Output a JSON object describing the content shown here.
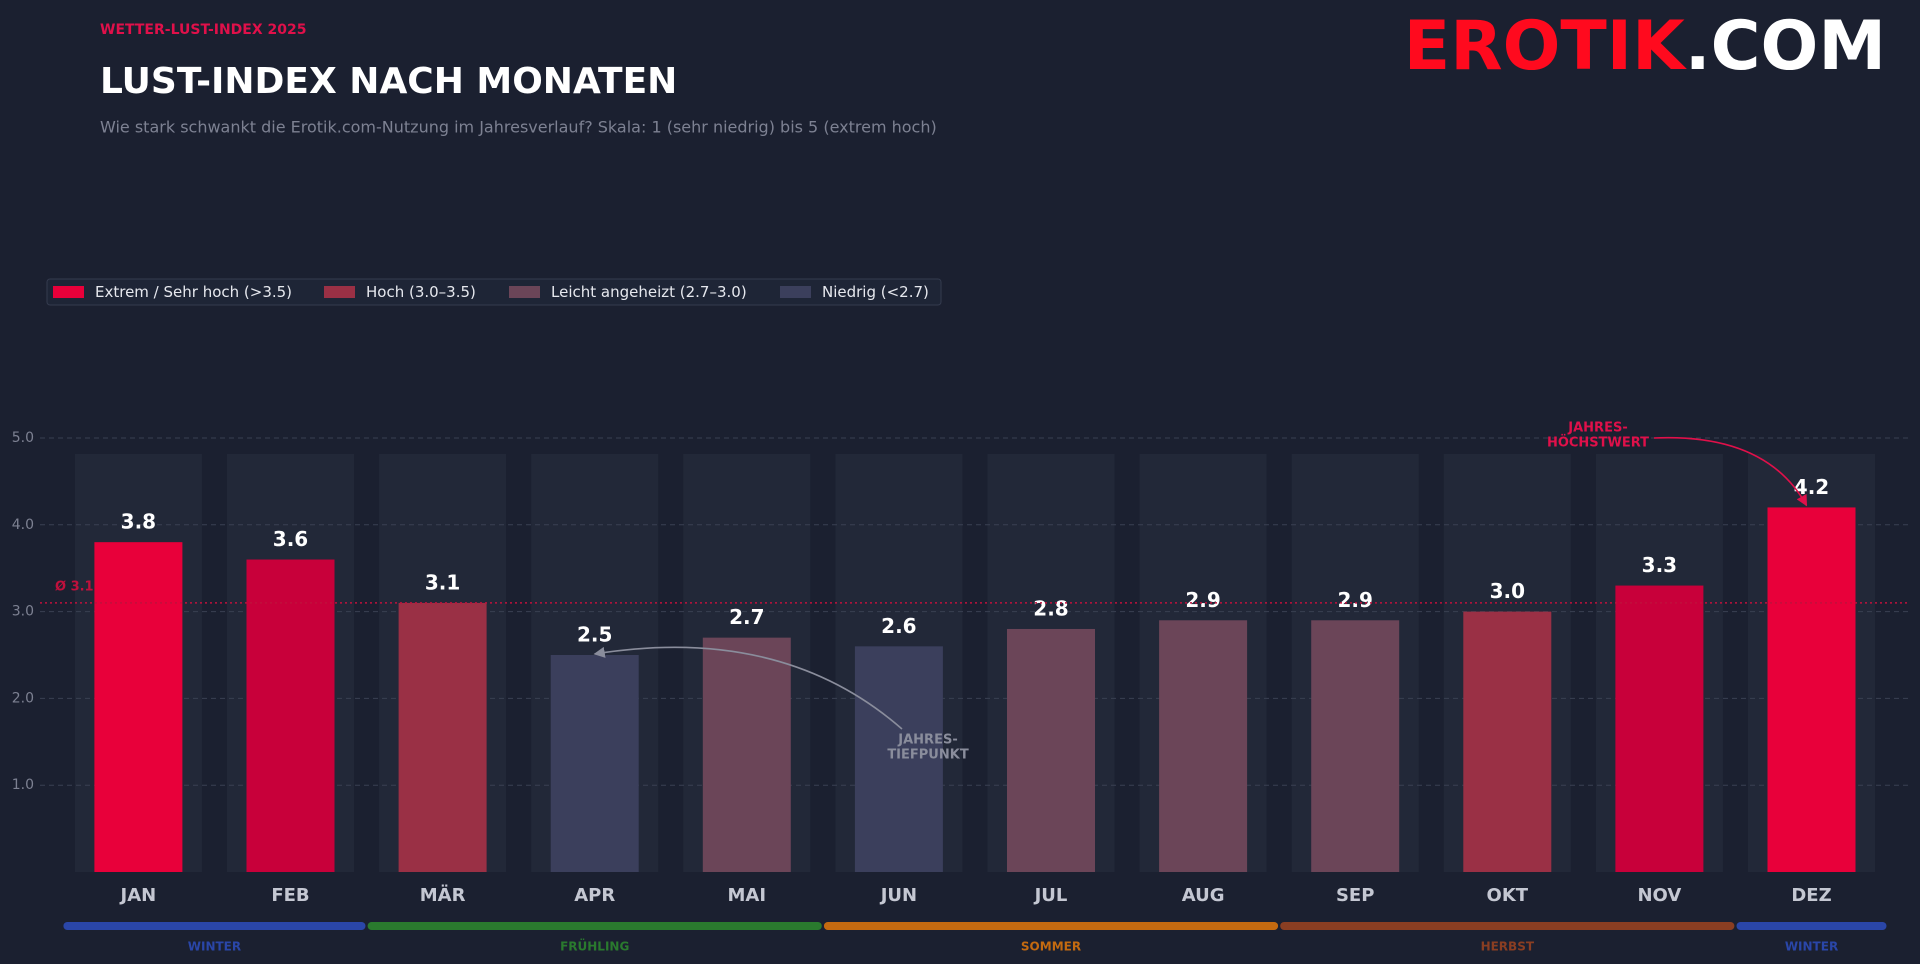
{
  "header": {
    "kicker": "WETTER-LUST-INDEX 2025",
    "title": "LUST-INDEX NACH MONATEN",
    "subtitle": "Wie stark schwankt die Erotik.com-Nutzung im Jahresverlauf?   Skala: 1 (sehr niedrig) bis 5 (extrem hoch)",
    "logo_main": "EROTIK",
    "logo_suffix": ".COM"
  },
  "chart_data": {
    "type": "bar",
    "categories": [
      "JAN",
      "FEB",
      "MÄR",
      "APR",
      "MAI",
      "JUN",
      "JUL",
      "AUG",
      "SEP",
      "OKT",
      "NOV",
      "DEZ"
    ],
    "values": [
      3.8,
      3.6,
      3.1,
      2.5,
      2.7,
      2.6,
      2.8,
      2.9,
      2.9,
      3.0,
      3.3,
      4.2
    ],
    "value_labels": [
      "3.8",
      "3.6",
      "3.1",
      "2.5",
      "2.7",
      "2.6",
      "2.8",
      "2.9",
      "2.9",
      "3.0",
      "3.3",
      "4.2"
    ],
    "colors": [
      "#e8003a",
      "#c8003a",
      "#9a3045",
      "#3b3f5c",
      "#6b4558",
      "#3b3f5c",
      "#6b4558",
      "#6b4558",
      "#6b4558",
      "#9a3045",
      "#c8003a",
      "#e8003a"
    ],
    "ylim": [
      0,
      5
    ],
    "yticks": [
      {
        "value": 1,
        "label": "1.0"
      },
      {
        "value": 2,
        "label": "2.0"
      },
      {
        "value": 3,
        "label": "3.0"
      },
      {
        "value": 4,
        "label": "4.0"
      },
      {
        "value": 5,
        "label": "5.0"
      }
    ],
    "grid": true,
    "average": {
      "value": 3.1,
      "label": "Ø 3.1"
    },
    "legend": [
      {
        "name": "Extrem / Sehr hoch  (>3.5)",
        "color": "#e8003a"
      },
      {
        "name": "Hoch  (3.0–3.5)",
        "color": "#9a3045"
      },
      {
        "name": "Leicht angeheizt  (2.7–3.0)",
        "color": "#6b4558"
      },
      {
        "name": "Niedrig  (<2.7)",
        "color": "#3b3f5c"
      }
    ],
    "annotations": [
      {
        "text": [
          "JAHRES-",
          "HÖCHSTWERT"
        ],
        "target": 11,
        "color": "#e0104a"
      },
      {
        "text": [
          "JAHRES-",
          "TIEFPUNKT"
        ],
        "target": 3,
        "color": "#8a8d9c"
      }
    ],
    "seasons": [
      {
        "name": "WINTER",
        "span": [
          0,
          1
        ],
        "color": "#2a46a8"
      },
      {
        "name": "FRÜHLING",
        "span": [
          2,
          4
        ],
        "color": "#2a7a2e"
      },
      {
        "name": "SOMMER",
        "span": [
          5,
          7
        ],
        "color": "#c46a10"
      },
      {
        "name": "HERBST",
        "span": [
          8,
          10
        ],
        "color": "#8a3e22"
      },
      {
        "name": "WINTER",
        "span": [
          11,
          11
        ],
        "color": "#2a46a8"
      }
    ]
  }
}
